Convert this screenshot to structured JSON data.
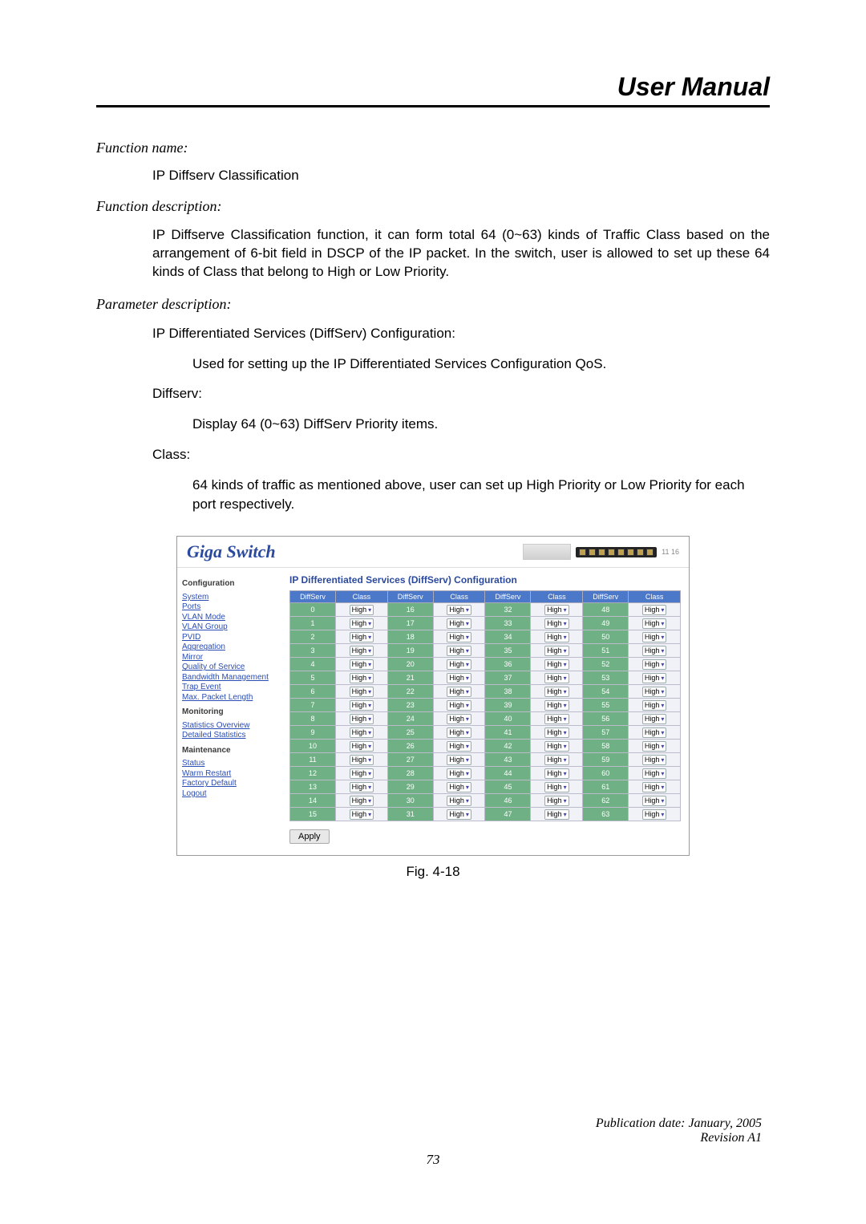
{
  "header": {
    "title": "User Manual"
  },
  "sections": {
    "fn_name_label": "Function name:",
    "fn_name": "IP Diffserv Classification",
    "fn_desc_label": "Function description:",
    "fn_desc": "IP Diffserve Classification function, it can form total 64 (0~63) kinds of Traffic Class based on the arrangement of 6-bit field in DSCP of the IP packet.  In the switch, user is allowed to set up these 64 kinds of Class that belong to High or Low Priority.",
    "param_label": "Parameter description:",
    "p1_title": "IP Differentiated Services (DiffServ) Configuration:",
    "p1_body": "Used for setting up the IP Differentiated Services Configuration QoS.",
    "p2_title": "Diffserv:",
    "p2_body": "Display 64 (0~63) DiffServ Priority items.",
    "p3_title": "Class:",
    "p3_body": "64 kinds of traffic as mentioned above, user can set up High Priority or Low Priority for each port respectively."
  },
  "screenshot": {
    "brand": "Giga Switch",
    "panel_text": "11 16",
    "sidebar": {
      "h1": "Configuration",
      "links1": [
        "System",
        "Ports",
        "VLAN Mode",
        "VLAN Group",
        "PVID",
        "Aggregation",
        "Mirror",
        "Quality of Service",
        "Bandwidth Management",
        "Trap Event",
        "Max. Packet Length"
      ],
      "h2": "Monitoring",
      "links2": [
        "Statistics Overview",
        "Detailed Statistics"
      ],
      "h3": "Maintenance",
      "links3": [
        "Status",
        "Warm Restart",
        "Factory Default",
        "Logout"
      ]
    },
    "main_title": "IP Differentiated Services (DiffServ) Configuration",
    "col_headers": [
      "DiffServ",
      "Class",
      "DiffServ",
      "Class",
      "DiffServ",
      "Class",
      "DiffServ",
      "Class"
    ],
    "class_value": "High",
    "rows": 16,
    "cols": 4,
    "apply": "Apply",
    "colors": {
      "header_bg": "#4b78c8",
      "idx_bg": "#6fb085",
      "cell_bg": "#f0f2f8",
      "brand_color": "#2b4a9e"
    }
  },
  "caption": "Fig. 4-18",
  "footer": {
    "pub": "Publication date: January, 2005",
    "rev": "Revision A1",
    "page": "73"
  }
}
